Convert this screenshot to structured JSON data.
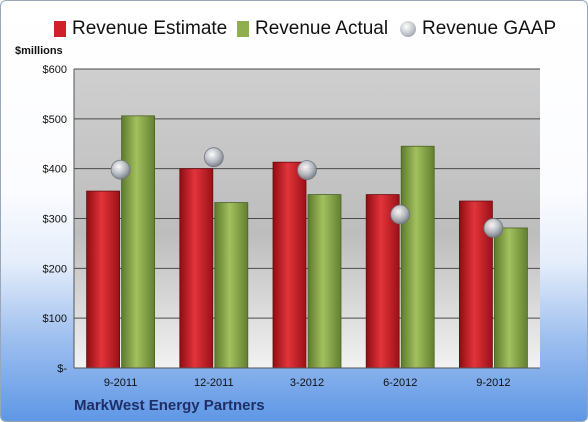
{
  "chart_data": {
    "type": "bar",
    "company": "MarkWest Energy Partners",
    "ylabel": "$millions",
    "categories": [
      "9-2011",
      "12-2011",
      "3-2012",
      "6-2012",
      "9-2012"
    ],
    "ylim": [
      0,
      600
    ],
    "yticks": [
      0,
      100,
      200,
      300,
      400,
      500,
      600
    ],
    "ytick_labels": [
      "$-",
      "$100",
      "$200",
      "$300",
      "$400",
      "$500",
      "$600"
    ],
    "grid": true,
    "legend_position": "top",
    "series": [
      {
        "name": "Revenue Estimate",
        "kind": "bar",
        "color": "#d0212a",
        "values": [
          355,
          400,
          413,
          348,
          335
        ]
      },
      {
        "name": "Revenue Actual",
        "kind": "bar",
        "color": "#8fae4f",
        "values": [
          506,
          332,
          348,
          445,
          281
        ]
      },
      {
        "name": "Revenue GAAP",
        "kind": "marker",
        "color": "#b8bcc4",
        "values": [
          398,
          423,
          397,
          308,
          281
        ]
      }
    ]
  }
}
